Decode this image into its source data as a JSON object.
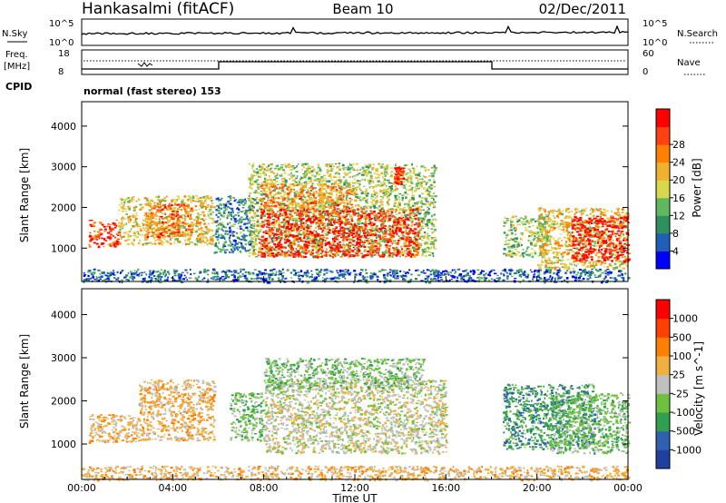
{
  "header": {
    "station": "Hankasalmi (fitACF)",
    "beam": "Beam 10",
    "date": "02/Dec/2011"
  },
  "noise_panel": {
    "left_label": "N.Sky",
    "right_label": "N.Search",
    "left_ticks": [
      "10^5",
      "10^0"
    ],
    "right_ticks": [
      "10^5",
      "10^0"
    ]
  },
  "freq_panel": {
    "left_label_1": "Freq.",
    "left_label_2": "[MHz]",
    "right_label": "Nave",
    "left_ticks": [
      "18",
      "8"
    ],
    "right_ticks": [
      "60",
      "0"
    ]
  },
  "cpid": {
    "label": "CPID",
    "value": "normal (fast stereo) 153"
  },
  "colors": {
    "power": [
      "#0000ff",
      "#1f5fb8",
      "#2f8f5f",
      "#5fb85f",
      "#d8d84f",
      "#f0b030",
      "#ff8000",
      "#ff4010",
      "#ff0000"
    ],
    "velocity": [
      "#2040a0",
      "#3060b0",
      "#30a050",
      "#70c040",
      "#c0c0c0",
      "#f0b040",
      "#ff8000",
      "#ff4000",
      "#ff0000"
    ]
  },
  "chart_data": [
    {
      "type": "heatmap",
      "title": "",
      "xlabel": "Time UT",
      "ylabel": "Slant Range [km]",
      "x_ticks": [
        "00:00",
        "04:00",
        "08:00",
        "12:00",
        "16:00",
        "20:00",
        "00:00"
      ],
      "xlim_hours": [
        0,
        24
      ],
      "y_ticks": [
        1000,
        2000,
        3000,
        4000
      ],
      "ylim": [
        180,
        4600
      ],
      "colorbar": {
        "label": "Power [dB]",
        "ticks": [
          "4",
          "8",
          "12",
          "16",
          "20",
          "24",
          "28"
        ],
        "range": [
          0,
          30
        ]
      },
      "regions": [
        {
          "t0": 0.3,
          "t1": 1.6,
          "r0": 1050,
          "r1": 1700,
          "level": 25
        },
        {
          "t0": 1.6,
          "t1": 5.8,
          "r0": 1100,
          "r1": 2300,
          "level": 17
        },
        {
          "t0": 2.8,
          "t1": 4.8,
          "r0": 1300,
          "r1": 2100,
          "level": 22
        },
        {
          "t0": 5.8,
          "t1": 7.5,
          "r0": 900,
          "r1": 2300,
          "level": 8
        },
        {
          "t0": 7.3,
          "t1": 15.5,
          "r0": 800,
          "r1": 3100,
          "level": 14
        },
        {
          "t0": 7.7,
          "t1": 14.8,
          "r0": 800,
          "r1": 2000,
          "level": 27
        },
        {
          "t0": 7.8,
          "t1": 12.0,
          "r0": 2000,
          "r1": 2600,
          "level": 21
        },
        {
          "t0": 13.7,
          "t1": 14.1,
          "r0": 2600,
          "r1": 3000,
          "level": 26
        },
        {
          "t0": 18.5,
          "t1": 20.5,
          "r0": 800,
          "r1": 1800,
          "level": 13
        },
        {
          "t0": 20.0,
          "t1": 24.0,
          "r0": 500,
          "r1": 2000,
          "level": 17
        },
        {
          "t0": 21.5,
          "t1": 24.0,
          "r0": 700,
          "r1": 1800,
          "level": 29
        },
        {
          "t0": 0.0,
          "t1": 24.0,
          "r0": 180,
          "r1": 500,
          "level": 6
        }
      ]
    },
    {
      "type": "heatmap",
      "title": "",
      "xlabel": "Time UT",
      "ylabel": "Slant Range [km]",
      "x_ticks": [
        "00:00",
        "04:00",
        "08:00",
        "12:00",
        "16:00",
        "20:00",
        "00:00"
      ],
      "xlim_hours": [
        0,
        24
      ],
      "y_ticks": [
        1000,
        2000,
        3000,
        4000
      ],
      "ylim": [
        180,
        4600
      ],
      "colorbar": {
        "label": "Velocity [m s^-1]",
        "ticks": [
          "1000",
          "500",
          "100",
          "25",
          "-25",
          "-100",
          "-500",
          "-1000"
        ]
      },
      "regions": [
        {
          "t0": 0.3,
          "t1": 2.5,
          "r0": 1050,
          "r1": 1700,
          "class": 5
        },
        {
          "t0": 2.5,
          "t1": 5.8,
          "r0": 1100,
          "r1": 2500,
          "class": 5
        },
        {
          "t0": 6.5,
          "t1": 8.0,
          "r0": 1100,
          "r1": 2200,
          "class": 3
        },
        {
          "t0": 8.0,
          "t1": 16.0,
          "r0": 800,
          "r1": 2500,
          "class": 4
        },
        {
          "t0": 8.0,
          "t1": 15.0,
          "r0": 2300,
          "r1": 3000,
          "class": 3
        },
        {
          "t0": 18.5,
          "t1": 22.5,
          "r0": 900,
          "r1": 2400,
          "class": 2
        },
        {
          "t0": 20.5,
          "t1": 24.0,
          "r0": 800,
          "r1": 2200,
          "class": 3
        },
        {
          "t0": 0.0,
          "t1": 24.0,
          "r0": 180,
          "r1": 500,
          "class": 5
        }
      ]
    }
  ]
}
